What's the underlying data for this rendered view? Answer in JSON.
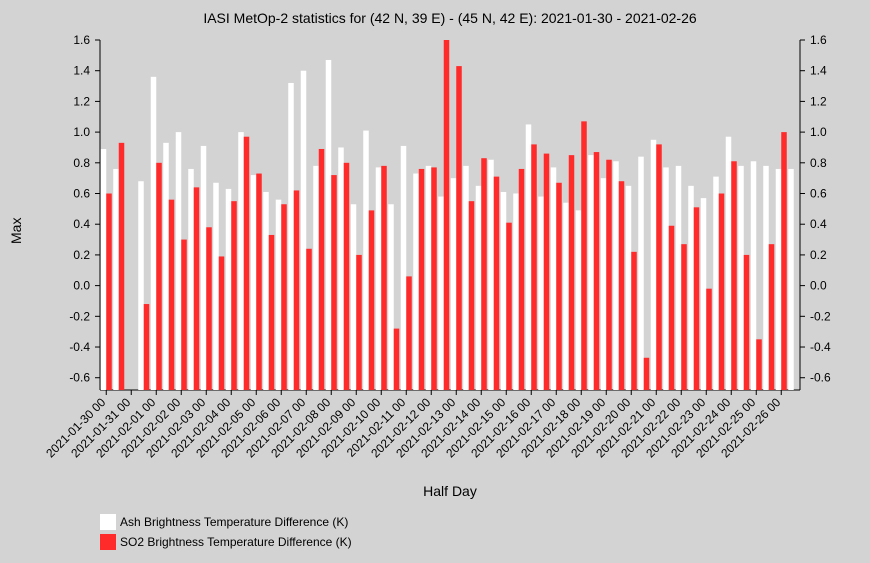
{
  "chart_data": {
    "type": "bar",
    "title": "IASI MetOp-2 statistics for (42 N, 39 E) - (45 N, 42 E): 2021-01-30 - 2021-02-26",
    "xlabel": "Half Day",
    "ylabel": "Max",
    "ylim": [
      -0.68,
      1.6
    ],
    "yticks": [
      "1.6",
      "1.4",
      "1.2",
      "1.0",
      "0.8",
      "0.6",
      "0.4",
      "0.2",
      "0.0",
      "-0.2",
      "-0.4",
      "-0.6"
    ],
    "categories": [
      "2021-01-30 00",
      "2021-01-30 12",
      "2021-01-31 00",
      "2021-01-31 12",
      "2021-02-01 00",
      "2021-02-01 12",
      "2021-02-02 00",
      "2021-02-02 12",
      "2021-02-03 00",
      "2021-02-03 12",
      "2021-02-04 00",
      "2021-02-04 12",
      "2021-02-05 00",
      "2021-02-05 12",
      "2021-02-06 00",
      "2021-02-06 12",
      "2021-02-07 00",
      "2021-02-07 12",
      "2021-02-08 00",
      "2021-02-08 12",
      "2021-02-09 00",
      "2021-02-09 12",
      "2021-02-10 00",
      "2021-02-10 12",
      "2021-02-11 00",
      "2021-02-11 12",
      "2021-02-12 00",
      "2021-02-12 12",
      "2021-02-13 00",
      "2021-02-13 12",
      "2021-02-14 00",
      "2021-02-14 12",
      "2021-02-15 00",
      "2021-02-15 12",
      "2021-02-16 00",
      "2021-02-16 12",
      "2021-02-17 00",
      "2021-02-17 12",
      "2021-02-18 00",
      "2021-02-18 12",
      "2021-02-19 00",
      "2021-02-19 12",
      "2021-02-20 00",
      "2021-02-20 12",
      "2021-02-21 00",
      "2021-02-21 12",
      "2021-02-22 00",
      "2021-02-22 12",
      "2021-02-23 00",
      "2021-02-23 12",
      "2021-02-24 00",
      "2021-02-24 12",
      "2021-02-25 00",
      "2021-02-25 12",
      "2021-02-26 00",
      "2021-02-26 12"
    ],
    "tick_labels": [
      "2021-01-30 00",
      "2021-01-31 00",
      "2021-02-01 00",
      "2021-02-02 00",
      "2021-02-03 00",
      "2021-02-04 00",
      "2021-02-05 00",
      "2021-02-06 00",
      "2021-02-07 00",
      "2021-02-08 00",
      "2021-02-09 00",
      "2021-02-10 00",
      "2021-02-11 00",
      "2021-02-12 00",
      "2021-02-13 00",
      "2021-02-14 00",
      "2021-02-15 00",
      "2021-02-16 00",
      "2021-02-17 00",
      "2021-02-18 00",
      "2021-02-19 00",
      "2021-02-20 00",
      "2021-02-21 00",
      "2021-02-22 00",
      "2021-02-23 00",
      "2021-02-24 00",
      "2021-02-25 00",
      "2021-02-26 00"
    ],
    "series": [
      {
        "name": "Ash Brightness Temperature Difference (K)",
        "color": "#ffffff",
        "values": [
          0.89,
          0.76,
          null,
          0.68,
          1.36,
          0.93,
          1.0,
          0.76,
          0.91,
          0.67,
          0.63,
          1.0,
          0.72,
          0.61,
          0.56,
          1.32,
          1.4,
          0.78,
          1.47,
          0.9,
          0.53,
          1.01,
          0.77,
          0.53,
          0.91,
          0.73,
          0.78,
          0.58,
          0.7,
          0.78,
          0.65,
          0.82,
          0.61,
          0.6,
          1.05,
          0.58,
          0.77,
          0.54,
          0.49,
          0.85,
          0.7,
          0.81,
          0.65,
          0.84,
          0.95,
          0.77,
          0.78,
          0.65,
          0.57,
          0.71,
          0.97,
          0.78,
          0.81,
          0.78,
          0.76,
          0.76
        ]
      },
      {
        "name": "SO2 Brightness Temperature Difference (K)",
        "color": "#ff2a2a",
        "values": [
          0.6,
          0.93,
          null,
          -0.12,
          0.8,
          0.56,
          0.3,
          0.64,
          0.38,
          0.19,
          0.55,
          0.97,
          0.73,
          0.33,
          0.53,
          0.62,
          0.24,
          0.89,
          0.72,
          0.8,
          0.2,
          0.49,
          0.78,
          -0.28,
          0.06,
          0.76,
          0.77,
          1.6,
          1.43,
          0.55,
          0.83,
          0.71,
          0.41,
          0.76,
          0.92,
          0.86,
          0.67,
          0.85,
          1.07,
          0.87,
          0.82,
          0.68,
          0.22,
          -0.47,
          0.92,
          0.39,
          0.27,
          0.51,
          -0.02,
          0.6,
          0.81,
          0.2,
          -0.35,
          0.27,
          1.0,
          null
        ]
      }
    ],
    "legend_position": "bottom-left"
  }
}
